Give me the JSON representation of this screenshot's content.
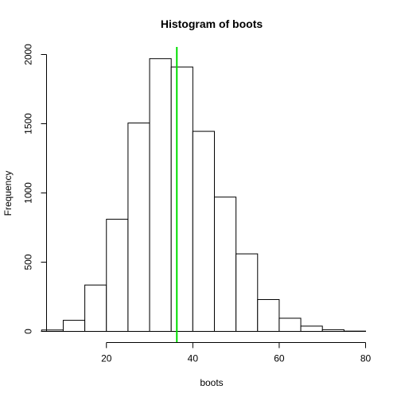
{
  "chart_data": {
    "type": "bar",
    "title": "Histogram of boots",
    "xlabel": "boots",
    "ylabel": "Frequency",
    "xlim": [
      4.5,
      80
    ],
    "ylim": [
      0,
      2050
    ],
    "x_ticks": [
      20,
      40,
      60,
      80
    ],
    "y_ticks": [
      0,
      500,
      1000,
      1500,
      2000
    ],
    "bin_width": 5,
    "bins": [
      {
        "start": 5,
        "end": 10,
        "count": 10
      },
      {
        "start": 10,
        "end": 15,
        "count": 80
      },
      {
        "start": 15,
        "end": 20,
        "count": 335
      },
      {
        "start": 20,
        "end": 25,
        "count": 810
      },
      {
        "start": 25,
        "end": 30,
        "count": 1505
      },
      {
        "start": 30,
        "end": 35,
        "count": 1970
      },
      {
        "start": 35,
        "end": 40,
        "count": 1910
      },
      {
        "start": 40,
        "end": 45,
        "count": 1445
      },
      {
        "start": 45,
        "end": 50,
        "count": 970
      },
      {
        "start": 50,
        "end": 55,
        "count": 560
      },
      {
        "start": 55,
        "end": 60,
        "count": 230
      },
      {
        "start": 60,
        "end": 65,
        "count": 95
      },
      {
        "start": 65,
        "end": 70,
        "count": 38
      },
      {
        "start": 70,
        "end": 75,
        "count": 12
      },
      {
        "start": 75,
        "end": 80,
        "count": 2
      }
    ],
    "reference_line": {
      "x": 36.3,
      "color": "#00dd00"
    },
    "grid": false,
    "legend": "none"
  }
}
